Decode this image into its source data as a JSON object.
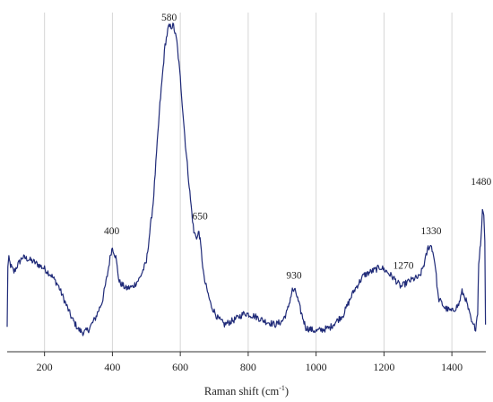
{
  "chart_data": {
    "type": "line",
    "title": "",
    "xlabel": "Raman shift (cm",
    "xlabel_sup": "-1",
    "xlabel_suffix": ")",
    "ylabel": "",
    "xlim": [
      90,
      1500
    ],
    "ylim": [
      0,
      1
    ],
    "grid": {
      "vertical": true,
      "horizontal": false
    },
    "x_ticks": [
      200,
      400,
      600,
      800,
      1000,
      1200,
      1400
    ],
    "x_tick_labels": [
      "200",
      "400",
      "600",
      "800",
      "1000",
      "1200",
      "1400"
    ],
    "line_color": "#1f2a78",
    "series": [
      {
        "points": [
          [
            90,
            0.04
          ],
          [
            92,
            0.23
          ],
          [
            95,
            0.25
          ],
          [
            100,
            0.23
          ],
          [
            110,
            0.21
          ],
          [
            120,
            0.23
          ],
          [
            135,
            0.255
          ],
          [
            150,
            0.25
          ],
          [
            170,
            0.24
          ],
          [
            200,
            0.22
          ],
          [
            220,
            0.2
          ],
          [
            240,
            0.17
          ],
          [
            260,
            0.12
          ],
          [
            280,
            0.07
          ],
          [
            300,
            0.035
          ],
          [
            315,
            0.025
          ],
          [
            330,
            0.035
          ],
          [
            350,
            0.07
          ],
          [
            370,
            0.12
          ],
          [
            385,
            0.2
          ],
          [
            395,
            0.265
          ],
          [
            400,
            0.285
          ],
          [
            410,
            0.255
          ],
          [
            420,
            0.18
          ],
          [
            440,
            0.16
          ],
          [
            460,
            0.165
          ],
          [
            480,
            0.19
          ],
          [
            500,
            0.24
          ],
          [
            520,
            0.42
          ],
          [
            540,
            0.72
          ],
          [
            555,
            0.9
          ],
          [
            565,
            0.955
          ],
          [
            580,
            0.96
          ],
          [
            590,
            0.91
          ],
          [
            600,
            0.8
          ],
          [
            615,
            0.6
          ],
          [
            630,
            0.43
          ],
          [
            640,
            0.33
          ],
          [
            650,
            0.315
          ],
          [
            655,
            0.335
          ],
          [
            660,
            0.29
          ],
          [
            670,
            0.19
          ],
          [
            690,
            0.11
          ],
          [
            710,
            0.07
          ],
          [
            730,
            0.05
          ],
          [
            760,
            0.065
          ],
          [
            790,
            0.085
          ],
          [
            820,
            0.075
          ],
          [
            850,
            0.06
          ],
          [
            880,
            0.05
          ],
          [
            900,
            0.06
          ],
          [
            915,
            0.09
          ],
          [
            930,
            0.155
          ],
          [
            940,
            0.15
          ],
          [
            955,
            0.09
          ],
          [
            970,
            0.04
          ],
          [
            1000,
            0.03
          ],
          [
            1040,
            0.04
          ],
          [
            1080,
            0.08
          ],
          [
            1110,
            0.15
          ],
          [
            1140,
            0.2
          ],
          [
            1170,
            0.215
          ],
          [
            1190,
            0.225
          ],
          [
            1210,
            0.21
          ],
          [
            1230,
            0.19
          ],
          [
            1250,
            0.165
          ],
          [
            1270,
            0.18
          ],
          [
            1290,
            0.19
          ],
          [
            1305,
            0.195
          ],
          [
            1320,
            0.24
          ],
          [
            1330,
            0.285
          ],
          [
            1340,
            0.29
          ],
          [
            1350,
            0.24
          ],
          [
            1360,
            0.13
          ],
          [
            1380,
            0.1
          ],
          [
            1400,
            0.09
          ],
          [
            1420,
            0.11
          ],
          [
            1430,
            0.15
          ],
          [
            1440,
            0.13
          ],
          [
            1460,
            0.05
          ],
          [
            1470,
            0.04
          ],
          [
            1476,
            0.09
          ],
          [
            1479,
            0.24
          ],
          [
            1483,
            0.28
          ],
          [
            1486,
            0.31
          ],
          [
            1488,
            0.36
          ],
          [
            1490,
            0.4
          ],
          [
            1494,
            0.39
          ],
          [
            1497,
            0.3
          ],
          [
            1499,
            0.05
          ]
        ]
      }
    ],
    "annotations": [
      {
        "text": "580",
        "x": 567,
        "y": 0.975
      },
      {
        "text": "400",
        "x": 398,
        "y": 0.325
      },
      {
        "text": "650",
        "x": 658,
        "y": 0.37
      },
      {
        "text": "930",
        "x": 935,
        "y": 0.19
      },
      {
        "text": "1270",
        "x": 1257,
        "y": 0.22
      },
      {
        "text": "1330",
        "x": 1339,
        "y": 0.325
      },
      {
        "text": "1480",
        "x": 1486,
        "y": 0.475
      }
    ]
  }
}
